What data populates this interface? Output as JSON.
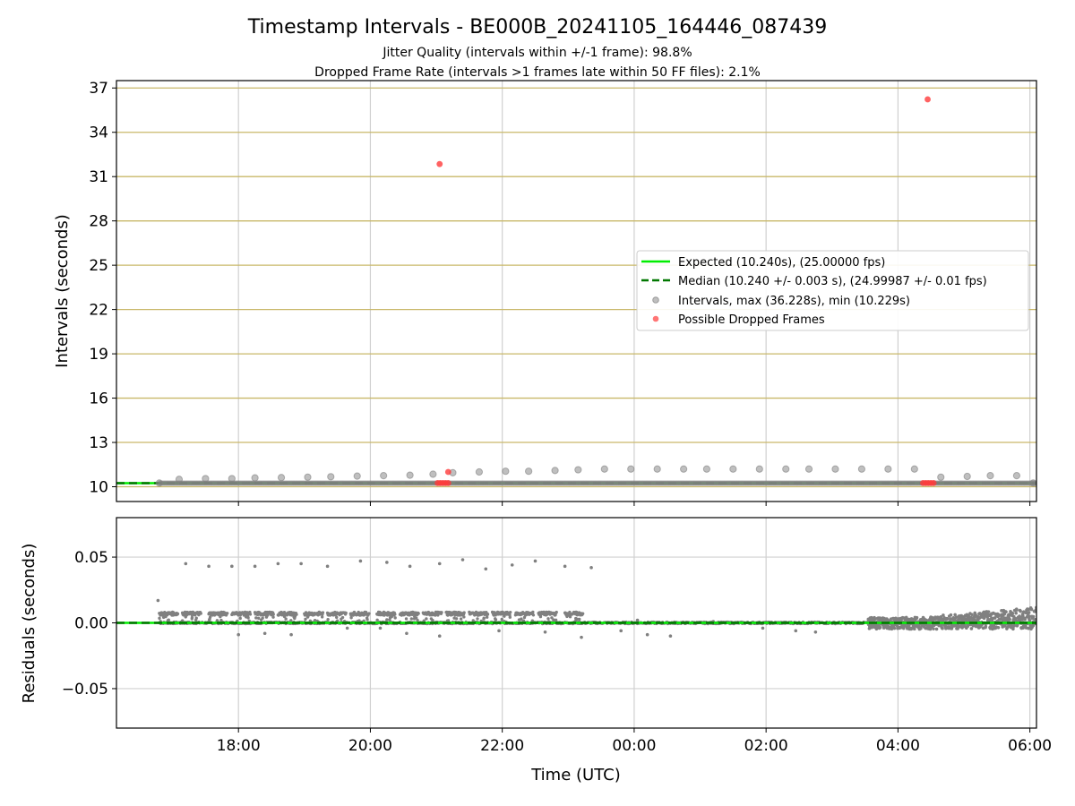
{
  "figure": {
    "title": "Timestamp Intervals - BE000B_20241105_164446_087439",
    "subtitle_1": "Jitter Quality (intervals within +/-1 frame): 98.8%",
    "subtitle_2": "Dropped Frame Rate (intervals >1 frames late within 50 FF files): 2.1%"
  },
  "colors": {
    "expected": "#00ee00",
    "median": "#007700",
    "intervals": "#808080",
    "dropped": "#ff3b3b",
    "hgrid_top": "#c9b86a",
    "grid": "#d0d0d0"
  },
  "chart_data": [
    {
      "type": "scatter",
      "panel": "intervals",
      "xlabel": "",
      "ylabel": "Intervals (seconds)",
      "x_unit": "hours since 00:00 UTC (negative = previous day)",
      "xlim": [
        -7.85,
        6.1
      ],
      "ylim": [
        9.0,
        37.5
      ],
      "yticks": [
        10,
        13,
        16,
        19,
        22,
        25,
        28,
        31,
        34,
        37
      ],
      "ytick_labels": [
        "10",
        "13",
        "16",
        "19",
        "22",
        "25",
        "28",
        "31",
        "34",
        "37"
      ],
      "xticks": [
        -6,
        -4,
        -2,
        0,
        2,
        4,
        6
      ],
      "xtick_labels": [
        "18:00",
        "20:00",
        "22:00",
        "00:00",
        "02:00",
        "04:00",
        "06:00"
      ],
      "grid": true,
      "expected_value": 10.24,
      "median_value": 10.24,
      "legend": {
        "position": "center-right",
        "entries": [
          "Expected (10.240s), (25.00000 fps)",
          "Median (10.240 +/- 0.003 s), (24.99987 +/- 0.01 fps)",
          "Intervals, max (36.228s), min (10.229s)",
          "Possible Dropped Frames"
        ]
      },
      "series": [
        {
          "name": "Intervals, max (36.228s), min (10.229s)",
          "points": [
            [
              -7.2,
              10.25
            ],
            [
              -6.9,
              10.5
            ],
            [
              -6.5,
              10.55
            ],
            [
              -6.1,
              10.55
            ],
            [
              -5.75,
              10.6
            ],
            [
              -5.35,
              10.62
            ],
            [
              -4.95,
              10.65
            ],
            [
              -4.6,
              10.68
            ],
            [
              -4.2,
              10.72
            ],
            [
              -3.8,
              10.75
            ],
            [
              -3.4,
              10.78
            ],
            [
              -3.05,
              10.85
            ],
            [
              -2.75,
              10.95
            ],
            [
              -2.35,
              11.0
            ],
            [
              -1.95,
              11.05
            ],
            [
              -1.6,
              11.05
            ],
            [
              -1.2,
              11.1
            ],
            [
              -0.85,
              11.15
            ],
            [
              -0.45,
              11.2
            ],
            [
              -0.05,
              11.2
            ],
            [
              0.35,
              11.2
            ],
            [
              0.75,
              11.2
            ],
            [
              1.1,
              11.2
            ],
            [
              1.5,
              11.2
            ],
            [
              1.9,
              11.2
            ],
            [
              2.3,
              11.2
            ],
            [
              2.65,
              11.2
            ],
            [
              3.05,
              11.2
            ],
            [
              3.45,
              11.2
            ],
            [
              3.85,
              11.2
            ],
            [
              4.25,
              11.2
            ],
            [
              4.65,
              10.65
            ],
            [
              5.05,
              10.7
            ],
            [
              5.4,
              10.75
            ],
            [
              5.8,
              10.75
            ],
            [
              6.05,
              10.25
            ]
          ]
        },
        {
          "name": "Possible Dropped Frames",
          "points": [
            [
              -2.95,
              31.85
            ],
            [
              -2.82,
              11.0
            ],
            [
              4.45,
              36.23
            ],
            [
              -2.98,
              10.25
            ],
            [
              -2.94,
              10.25
            ],
            [
              -2.9,
              10.25
            ],
            [
              -2.86,
              10.25
            ],
            [
              -2.82,
              10.25
            ],
            [
              4.38,
              10.25
            ],
            [
              4.42,
              10.25
            ],
            [
              4.46,
              10.25
            ],
            [
              4.5,
              10.25
            ],
            [
              4.54,
              10.25
            ]
          ]
        }
      ]
    },
    {
      "type": "scatter",
      "panel": "residuals",
      "xlabel": "Time (UTC)",
      "ylabel": "Residuals (seconds)",
      "x_unit": "hours since 00:00 UTC (negative = previous day)",
      "xlim": [
        -7.85,
        6.1
      ],
      "ylim": [
        -0.08,
        0.08
      ],
      "yticks": [
        0.05,
        0.0,
        -0.05
      ],
      "ytick_labels": [
        "0.05",
        "0.00",
        "−0.05"
      ],
      "xticks": [
        -6,
        -4,
        -2,
        0,
        2,
        4,
        6
      ],
      "xtick_labels": [
        "18:00",
        "20:00",
        "22:00",
        "00:00",
        "02:00",
        "04:00",
        "06:00"
      ],
      "grid": true,
      "zero_line": 0.0,
      "series": [
        {
          "name": "",
          "clusters_start_hours": [
            -7.2,
            -6.85,
            -6.45,
            -6.1,
            -5.75,
            -5.4,
            -5.0,
            -4.65,
            -4.3,
            -3.9,
            -3.55,
            -3.2,
            -2.85,
            -2.5,
            -2.15,
            -1.8,
            -1.45,
            -1.05
          ],
          "cluster_level": 0.007,
          "cluster_length_hours": 0.28,
          "outliers": [
            [
              -7.22,
              0.017
            ],
            [
              -6.8,
              0.045
            ],
            [
              -6.45,
              0.043
            ],
            [
              -6.1,
              0.043
            ],
            [
              -5.75,
              0.043
            ],
            [
              -5.4,
              0.045
            ],
            [
              -5.05,
              0.045
            ],
            [
              -4.65,
              0.043
            ],
            [
              -4.15,
              0.047
            ],
            [
              -3.75,
              0.046
            ],
            [
              -3.4,
              0.043
            ],
            [
              -2.95,
              0.045
            ],
            [
              -2.6,
              0.048
            ],
            [
              -2.25,
              0.041
            ],
            [
              -1.85,
              0.044
            ],
            [
              -1.5,
              0.047
            ],
            [
              -1.05,
              0.043
            ],
            [
              -0.65,
              0.042
            ],
            [
              -6.0,
              -0.009
            ],
            [
              -5.6,
              -0.008
            ],
            [
              -5.2,
              -0.009
            ],
            [
              -4.35,
              -0.004
            ],
            [
              -3.85,
              -0.004
            ],
            [
              -3.45,
              -0.008
            ],
            [
              -2.95,
              -0.01
            ],
            [
              -2.05,
              -0.006
            ],
            [
              -1.35,
              -0.007
            ],
            [
              -0.8,
              -0.011
            ],
            [
              -0.2,
              -0.006
            ],
            [
              0.2,
              -0.009
            ],
            [
              0.55,
              -0.01
            ],
            [
              1.95,
              -0.004
            ],
            [
              2.45,
              -0.006
            ],
            [
              2.75,
              -0.007
            ],
            [
              0.05,
              0.002
            ],
            [
              1.2,
              0.001
            ]
          ],
          "dense_region_hours": [
            3.55,
            6.1
          ],
          "dense_region_range": [
            -0.006,
            0.012
          ]
        }
      ]
    }
  ]
}
